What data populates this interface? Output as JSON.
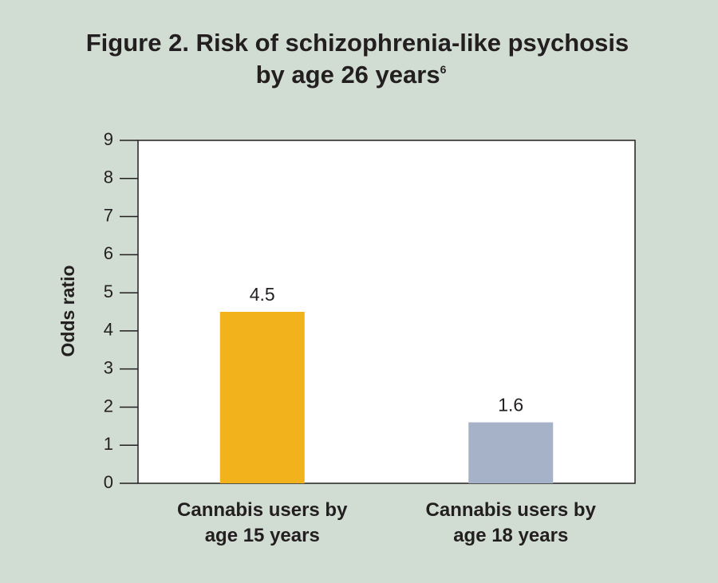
{
  "chart_data": {
    "type": "bar",
    "title": [
      "Figure 2. Risk of schizophrenia-like psychosis",
      "by age 26 years"
    ],
    "title_reference": "6",
    "y_label": "Odds ratio",
    "categories": [
      "Cannabis users by age 15 years",
      "Cannabis users by age 18 years"
    ],
    "values": [
      4.5,
      1.6
    ],
    "colors": [
      "#f2b21b",
      "#a6b2c8"
    ],
    "ylim": [
      0,
      9
    ],
    "yticks": [
      0,
      1,
      2,
      3,
      4,
      5,
      6,
      7,
      8,
      9
    ]
  }
}
